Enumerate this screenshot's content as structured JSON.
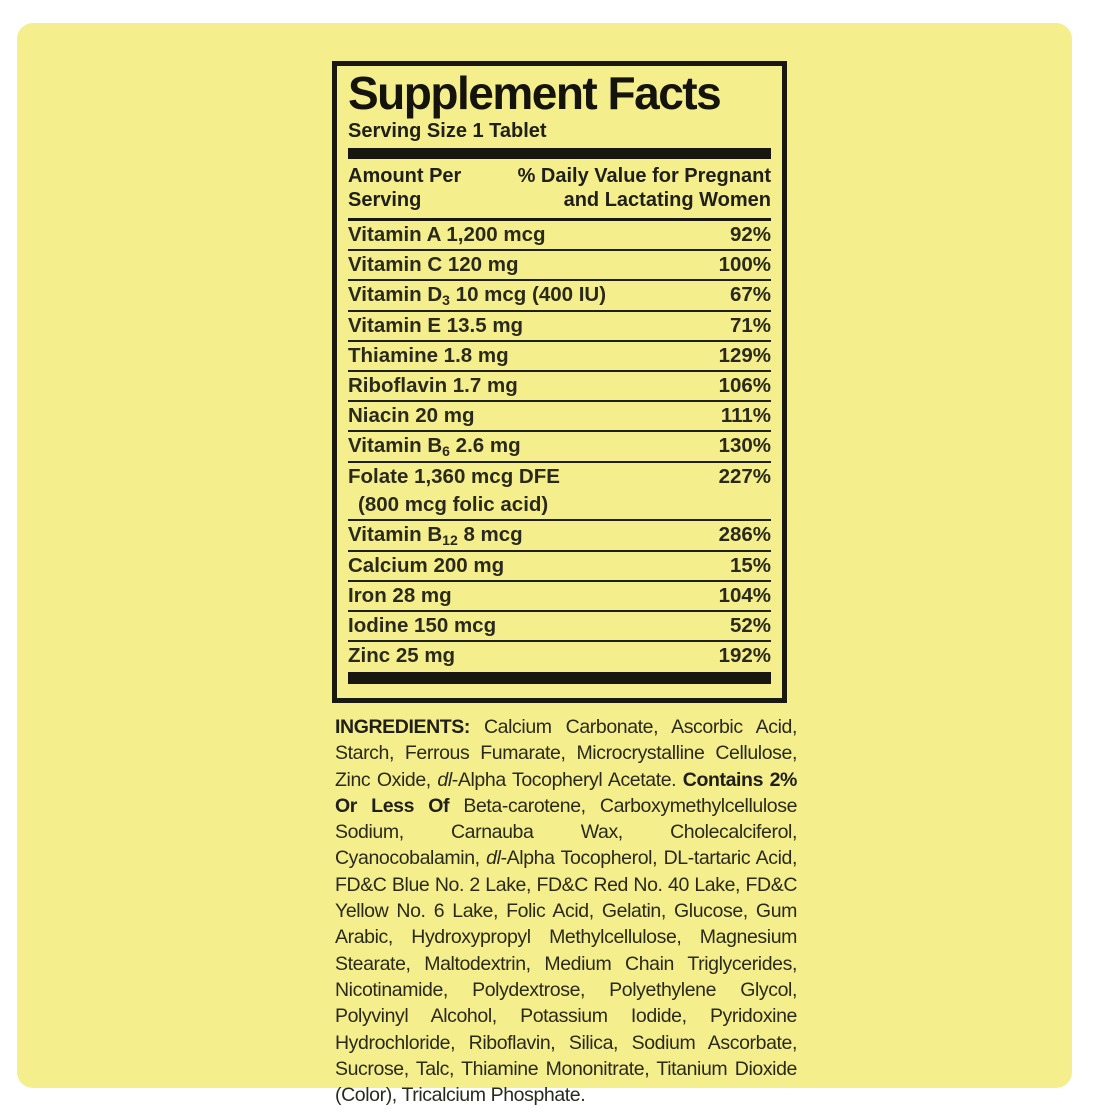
{
  "panel": {
    "title": "Supplement Facts",
    "serving_size": "Serving Size 1 Tablet",
    "header": {
      "left_lines": [
        "Amount Per",
        "Serving"
      ],
      "right_lines": [
        "% Daily Value for Pregnant",
        "and Lactating Women"
      ]
    },
    "rows": [
      {
        "parts": [
          {
            "text": "Vitamin A 1,200 mcg"
          }
        ],
        "dv": "92%"
      },
      {
        "parts": [
          {
            "text": "Vitamin C 120 mg"
          }
        ],
        "dv": "100%"
      },
      {
        "parts": [
          {
            "text": "Vitamin D"
          },
          {
            "text": "3",
            "sub": true
          },
          {
            "text": " 10 mcg (400 IU)"
          }
        ],
        "dv": "67%"
      },
      {
        "parts": [
          {
            "text": "Vitamin E 13.5 mg"
          }
        ],
        "dv": "71%"
      },
      {
        "parts": [
          {
            "text": "Thiamine 1.8 mg"
          }
        ],
        "dv": "129%"
      },
      {
        "parts": [
          {
            "text": "Riboflavin 1.7 mg"
          }
        ],
        "dv": "106%"
      },
      {
        "parts": [
          {
            "text": "Niacin 20 mg"
          }
        ],
        "dv": "111%"
      },
      {
        "parts": [
          {
            "text": "Vitamin B"
          },
          {
            "text": "6",
            "sub": true
          },
          {
            "text": " 2.6 mg"
          }
        ],
        "dv": "130%"
      },
      {
        "parts": [
          {
            "text": "Folate 1,360 mcg DFE"
          }
        ],
        "line2": "(800 mcg folic acid)",
        "dv": "227%"
      },
      {
        "parts": [
          {
            "text": "Vitamin B"
          },
          {
            "text": "12",
            "sub": true
          },
          {
            "text": " 8 mcg"
          }
        ],
        "dv": "286%"
      },
      {
        "parts": [
          {
            "text": "Calcium 200 mg"
          }
        ],
        "dv": "15%"
      },
      {
        "parts": [
          {
            "text": "Iron 28 mg"
          }
        ],
        "dv": "104%"
      },
      {
        "parts": [
          {
            "text": "Iodine 150 mcg"
          }
        ],
        "dv": "52%"
      },
      {
        "parts": [
          {
            "text": "Zinc 25 mg"
          }
        ],
        "dv": "192%"
      }
    ],
    "ingredients_segments": [
      {
        "text": "INGREDIENTS:",
        "bold": true
      },
      {
        "text": " Calcium Carbonate, Ascorbic Acid, Starch, Ferrous Fumarate, Microcrystalline Cellulose, Zinc Oxide, "
      },
      {
        "text": "dl",
        "italic": true
      },
      {
        "text": "-Alpha Tocopheryl Acetate. "
      },
      {
        "text": "Contains 2% Or Less Of",
        "bold": true
      },
      {
        "text": " Beta-carotene, Carboxymethylcellulose Sodium, Carnauba Wax, Cholecalciferol, Cyanocobalamin, "
      },
      {
        "text": "dl",
        "italic": true
      },
      {
        "text": "-Alpha Tocopherol, DL-tartaric Acid, FD&C Blue No. 2 Lake, FD&C Red No. 40 Lake, FD&C Yellow No. 6 Lake, Folic Acid, Gelatin, Glucose, Gum Arabic, Hydroxypropyl Methylcellulose, Magnesium Stearate, Maltodextrin, Medium Chain Triglycerides, Nicotinamide, Polydextrose, Polyethylene Glycol, Polyvinyl Alcohol, Potassium Iodide, Pyridoxine Hydrochloride, Riboflavin, Silica, Sodium Ascorbate, Sucrose, Talc, Thiamine Mononitrate, Titanium Dioxide (Color), Tricalcium Phosphate."
      }
    ],
    "colors": {
      "background_yellow": "#f5ee8c",
      "text_black": "#20201a",
      "page_white": "#ffffff"
    }
  }
}
